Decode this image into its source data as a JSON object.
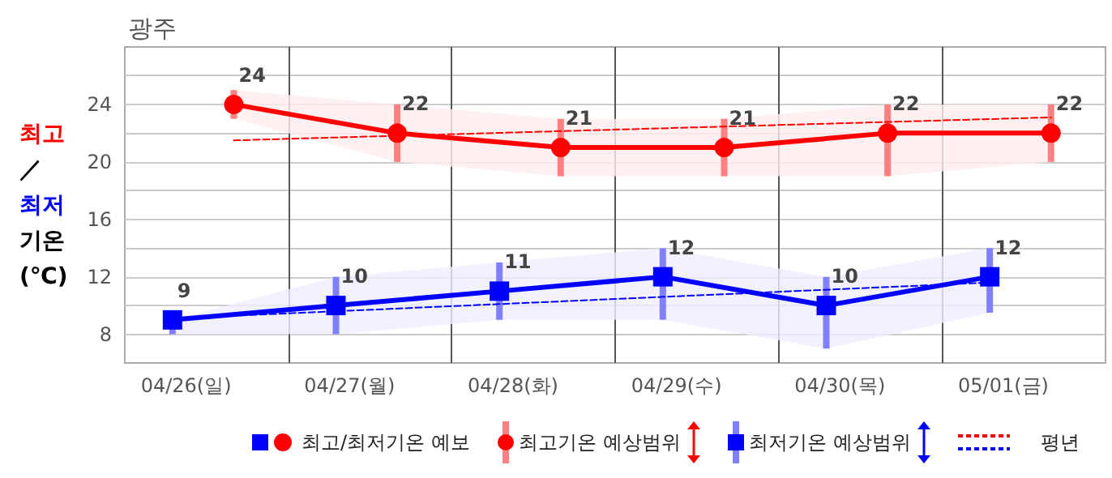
{
  "chart_data": {
    "type": "line",
    "title": "광주",
    "ylabel": "최고 ／ 최저 기온 (℃)",
    "xlim": [
      "--04-26T00:00",
      "--05-02T00:00"
    ],
    "xticks": [
      {
        "value": "--04-26T09:00",
        "label": "04/26(일)"
      },
      {
        "value": "--04-27T00:00",
        "label": null
      },
      {
        "value": "--04-27T09:00",
        "label": "04/27(월)"
      },
      {
        "value": "--04-28T00:00",
        "label": null
      },
      {
        "value": "--04-28T09:00",
        "label": "04/28(화)"
      },
      {
        "value": "--04-29T00:00",
        "label": null
      },
      {
        "value": "--04-29T09:00",
        "label": "04/29(수)"
      },
      {
        "value": "--04-30T00:00",
        "label": null
      },
      {
        "value": "--04-30T09:00",
        "label": "04/30(목)"
      },
      {
        "value": "--05-01T00:00",
        "label": null
      },
      {
        "value": "--05-01T09:00",
        "label": "05/01(금)"
      }
    ],
    "ylim": [
      6,
      28
    ],
    "yticks": [
      8,
      {
        "value": 10,
        "label": null
      },
      12,
      {
        "value": 14,
        "label": null
      },
      16,
      {
        "value": 18,
        "label": null
      },
      20,
      {
        "value": 22,
        "label": null
      },
      24,
      {
        "value": 26,
        "label": null
      }
    ],
    "grid": true,
    "legend": "bottom",
    "series": [
      {
        "name": "최고/최저기온 예보",
        "color": "#ff0000",
        "marker": "circle",
        "x": [
          "--04-26T16:00",
          "--04-27T16:00",
          "--04-28T16:00",
          "--04-29T16:00",
          "--04-30T16:00",
          "--05-01T16:00"
        ],
        "values": [
          24,
          22,
          21,
          21,
          22,
          22
        ],
        "value_labels": [
          "24",
          "22",
          "21",
          "21",
          "22",
          "22"
        ],
        "errors": [
          [
            23,
            25
          ],
          [
            20,
            24
          ],
          [
            19,
            23
          ],
          [
            19,
            23
          ],
          [
            19,
            24
          ],
          [
            20,
            24
          ]
        ],
        "lower": [
          23,
          20,
          19,
          19,
          19,
          20
        ],
        "upper": [
          25,
          24,
          23,
          23,
          24,
          24
        ]
      },
      {
        "color": "#0000ff",
        "marker": "square",
        "x": [
          "--04-26T07:00",
          "--04-27T07:00",
          "--04-28T07:00",
          "--04-29T07:00",
          "--04-30T07:00",
          "--05-01T07:00"
        ],
        "values": [
          9,
          10,
          11,
          12,
          10,
          12
        ],
        "value_labels": [
          "9",
          "10",
          "11",
          "12",
          "10",
          "12"
        ],
        "errors": [
          [
            8,
            9
          ],
          [
            8,
            12
          ],
          [
            9,
            13
          ],
          [
            9,
            14
          ],
          [
            7,
            12
          ],
          [
            9.5,
            14
          ]
        ],
        "lower": [
          8,
          8,
          9,
          9,
          7,
          9.5
        ],
        "upper": [
          9,
          12,
          13,
          14,
          12,
          14
        ]
      },
      {
        "name": "평년",
        "color": "#ff0000",
        "marker": "none",
        "line_style": "dashed",
        "x": [
          "--04-26T16:00",
          "--05-01T16:00"
        ],
        "values": [
          21.5,
          23.1
        ]
      },
      {
        "color": "#0000ff",
        "marker": "none",
        "line_style": "dashed",
        "x": [
          "--04-26T07:00",
          "--05-01T07:00"
        ],
        "values": [
          9.1,
          11.6
        ]
      }
    ],
    "annotations": [
      "최고기온 예상범위",
      "최저기온 예상범위"
    ]
  }
}
